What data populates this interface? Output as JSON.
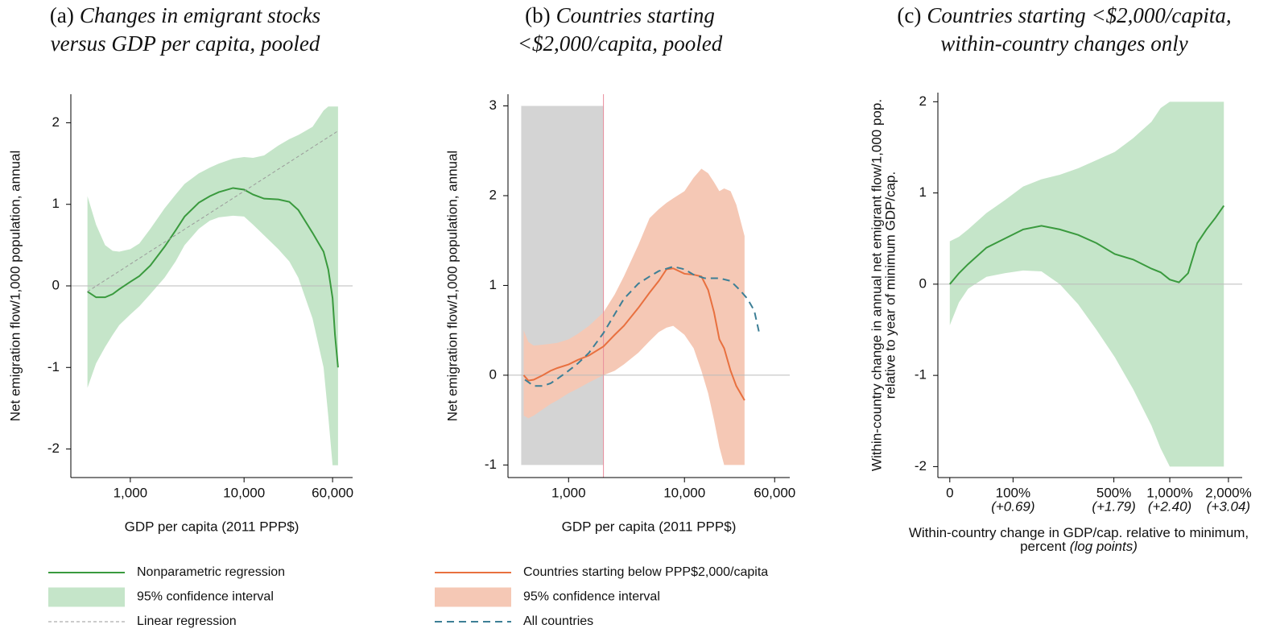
{
  "chart_data": [
    {
      "type": "line",
      "panel": "(a)",
      "title": [
        "Changes in emigrant stocks",
        "versus GDP per capita, pooled"
      ],
      "xlabel": "GDP per capita (2011 PPP$)",
      "ylabel": "Net emigration flow/1,000 population, annual",
      "xlog": true,
      "xlim": [
        300,
        90000
      ],
      "ylim": [
        -2.35,
        2.35
      ],
      "xticks": [
        {
          "value": 1000,
          "label": "1,000"
        },
        {
          "value": 10000,
          "label": "10,000"
        },
        {
          "value": 60000,
          "label": "60,000"
        }
      ],
      "yticks": [
        -2,
        -1,
        0,
        1,
        2
      ],
      "zero_line": true,
      "legend": "below",
      "x": [
        420,
        500,
        600,
        700,
        800,
        1000,
        1200,
        1500,
        2000,
        2500,
        3000,
        4000,
        5000,
        6000,
        8000,
        10000,
        12000,
        15000,
        20000,
        25000,
        30000,
        40000,
        50000,
        55000,
        60000,
        63000,
        67000
      ],
      "series": [
        {
          "name": "Nonparametric regression",
          "kind": "line",
          "style": "solid",
          "color": "#3a9a3e",
          "values": [
            -0.07,
            -0.14,
            -0.14,
            -0.1,
            -0.04,
            0.05,
            0.12,
            0.25,
            0.48,
            0.68,
            0.85,
            1.02,
            1.1,
            1.15,
            1.2,
            1.18,
            1.12,
            1.07,
            1.06,
            1.03,
            0.93,
            0.65,
            0.42,
            0.2,
            -0.15,
            -0.6,
            -1.0
          ]
        },
        {
          "name": "95% confidence interval",
          "kind": "band",
          "color": "#c5e5c9",
          "upper": [
            1.1,
            0.75,
            0.5,
            0.43,
            0.42,
            0.45,
            0.52,
            0.7,
            0.95,
            1.12,
            1.25,
            1.38,
            1.45,
            1.5,
            1.56,
            1.58,
            1.57,
            1.6,
            1.72,
            1.8,
            1.85,
            1.95,
            2.15,
            2.2,
            2.2,
            2.2,
            2.2
          ],
          "lower": [
            -1.25,
            -0.95,
            -0.75,
            -0.6,
            -0.48,
            -0.35,
            -0.25,
            -0.1,
            0.1,
            0.3,
            0.5,
            0.7,
            0.8,
            0.84,
            0.86,
            0.85,
            0.75,
            0.62,
            0.45,
            0.3,
            0.1,
            -0.4,
            -1.0,
            -1.6,
            -2.2,
            -2.2,
            -2.2
          ]
        },
        {
          "name": "Linear regression",
          "kind": "line",
          "style": "thin-dashed",
          "color": "#9a9a9a",
          "x": [
            420,
            67000
          ],
          "values": [
            -0.07,
            1.9
          ]
        }
      ]
    },
    {
      "type": "line",
      "panel": "(b)",
      "title": [
        "Countries starting",
        "<$2,000/capita, pooled"
      ],
      "xlabel": "GDP per capita (2011 PPP$)",
      "ylabel": "Net emigration flow/1,000 population, annual",
      "xlog": true,
      "xlim": [
        300,
        81000
      ],
      "ylim": [
        -1.14,
        3.13
      ],
      "xticks": [
        {
          "value": 1000,
          "label": "1,000"
        },
        {
          "value": 10000,
          "label": "10,000"
        },
        {
          "value": 60000,
          "label": "60,000"
        }
      ],
      "yticks": [
        -1,
        0,
        1,
        2,
        3
      ],
      "zero_line": true,
      "legend": "below",
      "shade": {
        "xlim": [
          390,
          2000
        ],
        "ylim": [
          -1,
          3
        ],
        "color": "#d4d4d4"
      },
      "vline": {
        "x": 2000,
        "color": "#e98d9c"
      },
      "x": [
        410,
        450,
        500,
        600,
        700,
        800,
        1000,
        1200,
        1500,
        2000,
        2500,
        3000,
        4000,
        5000,
        6000,
        7000,
        8000,
        10000,
        12000,
        14000,
        16000,
        18000,
        20000,
        22000,
        25000,
        28000,
        33000
      ],
      "series": [
        {
          "name": "Countries starting below PPP$2,000/capita",
          "kind": "line",
          "style": "solid",
          "color": "#e8703f",
          "values": [
            0.0,
            -0.06,
            -0.05,
            0.0,
            0.05,
            0.08,
            0.12,
            0.17,
            0.22,
            0.32,
            0.45,
            0.55,
            0.75,
            0.92,
            1.05,
            1.18,
            1.19,
            1.13,
            1.12,
            1.1,
            0.95,
            0.7,
            0.4,
            0.3,
            0.05,
            -0.12,
            -0.28
          ]
        },
        {
          "name": "95% confidence interval",
          "kind": "band",
          "color": "#f5c8b5",
          "upper": [
            0.5,
            0.37,
            0.33,
            0.34,
            0.35,
            0.36,
            0.4,
            0.46,
            0.55,
            0.7,
            0.9,
            1.1,
            1.45,
            1.75,
            1.85,
            1.92,
            1.97,
            2.05,
            2.2,
            2.3,
            2.25,
            2.15,
            2.05,
            2.08,
            2.05,
            1.9,
            1.55
          ],
          "lower": [
            -0.45,
            -0.48,
            -0.45,
            -0.38,
            -0.32,
            -0.28,
            -0.2,
            -0.15,
            -0.08,
            0.0,
            0.05,
            0.12,
            0.25,
            0.38,
            0.48,
            0.53,
            0.55,
            0.45,
            0.3,
            0.05,
            -0.2,
            -0.5,
            -0.8,
            -1.0,
            -1.0,
            -1.0,
            -1.0
          ]
        },
        {
          "name": "All countries",
          "kind": "line",
          "style": "dashed",
          "color": "#3d7f96",
          "x": [
            420,
            500,
            600,
            700,
            800,
            1000,
            1200,
            1500,
            2000,
            2500,
            3000,
            4000,
            5000,
            6000,
            8000,
            10000,
            12000,
            15000,
            20000,
            25000,
            30000,
            35000,
            40000,
            44000
          ],
          "values": [
            -0.05,
            -0.12,
            -0.12,
            -0.09,
            -0.04,
            0.05,
            0.13,
            0.25,
            0.47,
            0.68,
            0.85,
            1.02,
            1.1,
            1.16,
            1.21,
            1.18,
            1.12,
            1.08,
            1.08,
            1.05,
            0.95,
            0.85,
            0.72,
            0.48
          ]
        }
      ]
    },
    {
      "type": "line",
      "panel": "(c)",
      "title": [
        "Countries starting <$2,000/capita,",
        "within-country changes only"
      ],
      "xlabel": [
        "Within-country change in GDP/cap. relative to minimum,",
        "percent"
      ],
      "xlabel_note": "(log points)",
      "ylabel": [
        "Within-country change in annual net emigrant flow/1,000 pop.",
        "relative to year of minimum GDP/cap."
      ],
      "xlog": false,
      "xlim": [
        -0.13,
        3.19
      ],
      "ylim": [
        -2.12,
        2.1
      ],
      "xticks": [
        0,
        {
          "value": 0.69,
          "label": "100%",
          "sublabel": "(+0.69)"
        },
        {
          "value": 1.79,
          "label": "500%",
          "sublabel": "(+1.79)"
        },
        {
          "value": 2.4,
          "label": "1,000%",
          "sublabel": "(+2.40)"
        },
        {
          "value": 3.04,
          "label": "2,000%",
          "sublabel": "(+3.04)"
        }
      ],
      "yticks": [
        -2,
        -1,
        0,
        1,
        2
      ],
      "zero_line": true,
      "x": [
        0,
        0.1,
        0.2,
        0.4,
        0.6,
        0.8,
        1.0,
        1.2,
        1.4,
        1.6,
        1.8,
        2.0,
        2.2,
        2.3,
        2.4,
        2.5,
        2.6,
        2.7,
        2.8,
        2.9,
        2.99
      ],
      "series": [
        {
          "kind": "band",
          "color": "#c5e5c9",
          "upper": [
            0.47,
            0.52,
            0.6,
            0.78,
            0.92,
            1.07,
            1.15,
            1.2,
            1.27,
            1.36,
            1.45,
            1.6,
            1.78,
            1.93,
            2.0,
            2.0,
            2.0,
            2.0,
            2.0,
            2.0,
            2.0
          ],
          "lower": [
            -0.45,
            -0.2,
            -0.05,
            0.08,
            0.12,
            0.15,
            0.14,
            0.0,
            -0.22,
            -0.5,
            -0.8,
            -1.15,
            -1.55,
            -1.8,
            -2.0,
            -2.0,
            -2.0,
            -2.0,
            -2.0,
            -2.0,
            -2.0
          ]
        },
        {
          "kind": "line",
          "style": "solid",
          "color": "#3a9a3e",
          "values": [
            0.0,
            0.12,
            0.22,
            0.4,
            0.5,
            0.6,
            0.64,
            0.6,
            0.54,
            0.45,
            0.33,
            0.27,
            0.17,
            0.13,
            0.05,
            0.02,
            0.12,
            0.45,
            0.6,
            0.73,
            0.86
          ]
        }
      ]
    }
  ]
}
